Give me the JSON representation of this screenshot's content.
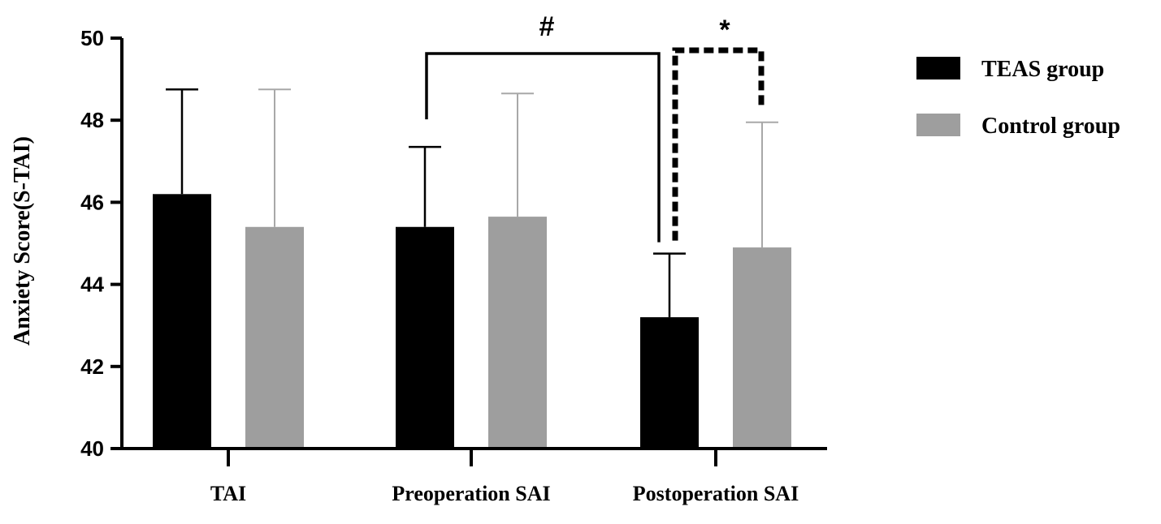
{
  "chart_data": {
    "type": "bar",
    "categories": [
      "TAI",
      "Preoperation SAI",
      "Postoperation SAI"
    ],
    "series": [
      {
        "name": "TEAS group",
        "color": "#000000",
        "values": [
          46.2,
          45.4,
          43.2
        ],
        "error": [
          2.55,
          1.95,
          1.55
        ]
      },
      {
        "name": "Control group",
        "color": "#9e9e9e",
        "values": [
          45.4,
          45.65,
          44.9
        ],
        "error": [
          3.35,
          3.0,
          3.05
        ]
      }
    ],
    "ylabel": "Anxiety Score(S-TAI)",
    "ylim": [
      40,
      50
    ],
    "yticks": [
      40,
      42,
      44,
      46,
      48,
      50
    ],
    "legend_position": "top-right",
    "annotations": [
      {
        "symbol": "#",
        "style": "solid",
        "from": {
          "category": 1,
          "series": 0
        },
        "to": {
          "category": 2,
          "series": 0
        }
      },
      {
        "symbol": "*",
        "style": "dashed",
        "from": {
          "category": 2,
          "series": 0
        },
        "to": {
          "category": 2,
          "series": 1
        }
      }
    ]
  }
}
